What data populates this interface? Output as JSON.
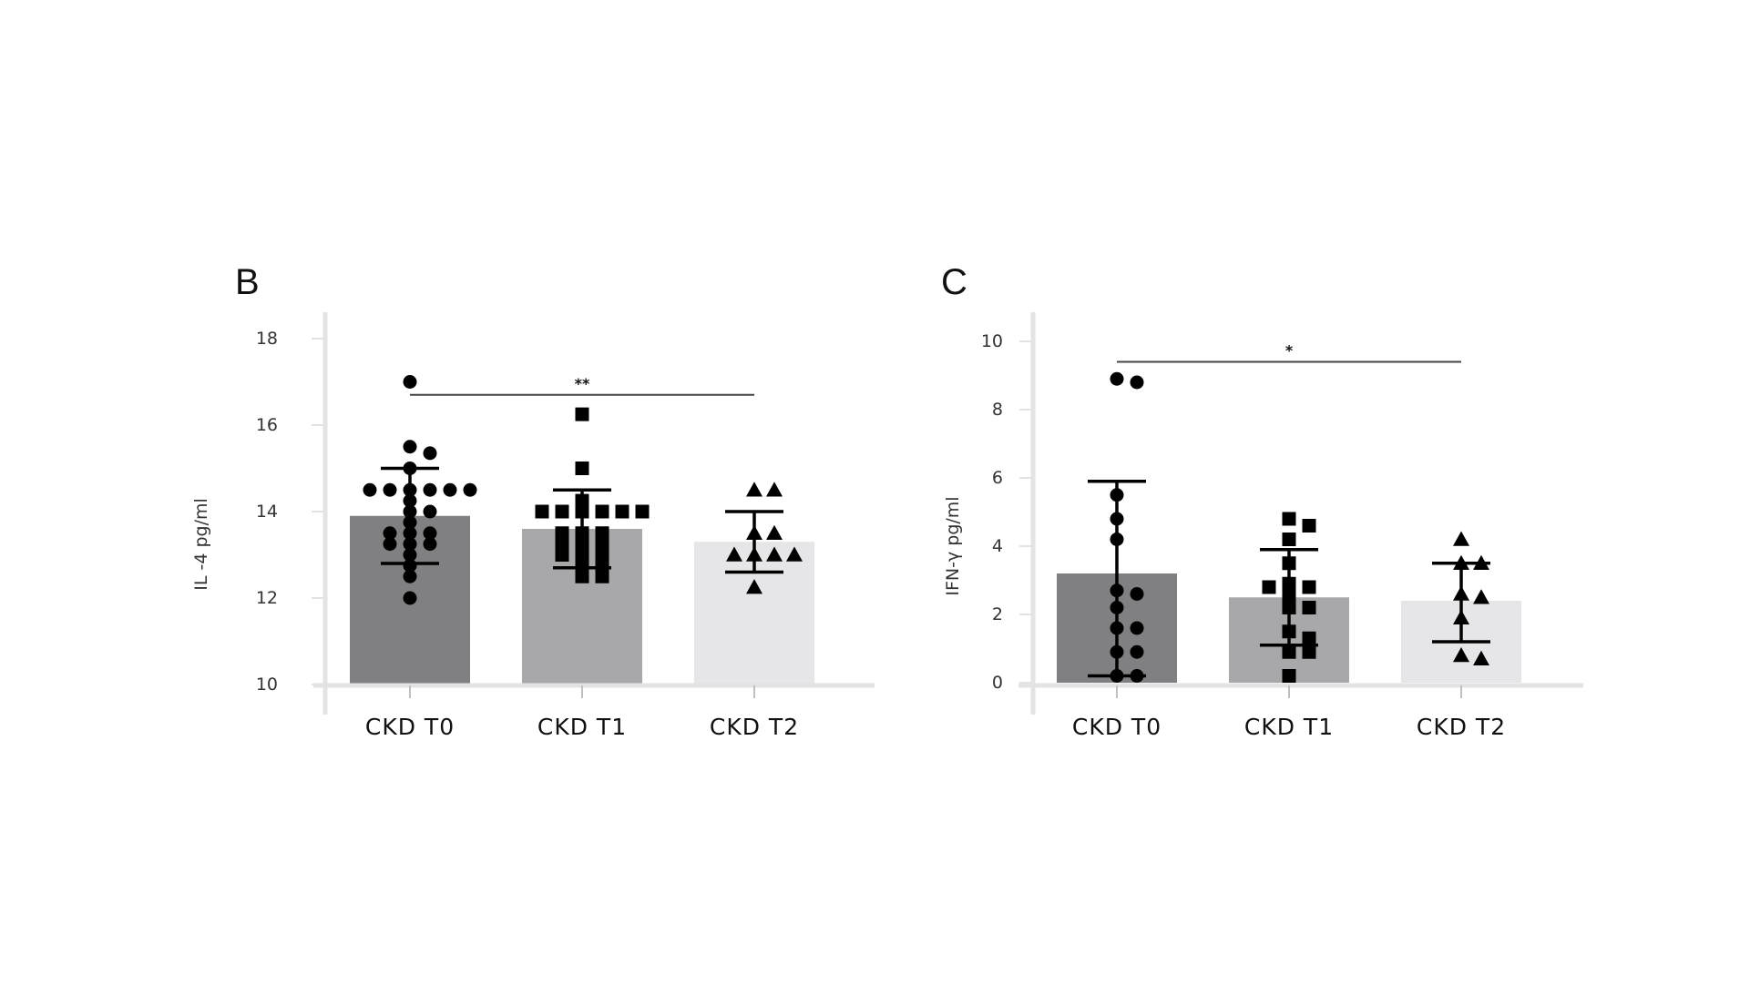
{
  "chart_data": [
    {
      "type": "bar",
      "panel_label": "B",
      "ylabel": "IL -4 pg/ml",
      "ylim": [
        10,
        18
      ],
      "yticks": [
        10,
        12,
        14,
        16,
        18
      ],
      "categories": [
        "CKD T0",
        "CKD T1",
        "CKD T2"
      ],
      "bar_colors": [
        "#808082",
        "#a8a8aa",
        "#e6e6e8"
      ],
      "marker_shapes": [
        "circle",
        "square",
        "triangle"
      ],
      "values": [
        13.9,
        13.6,
        13.3
      ],
      "error_bars": [
        [
          12.8,
          15.0
        ],
        [
          12.7,
          14.5
        ],
        [
          12.6,
          14.0
        ]
      ],
      "points": [
        [
          17.0,
          15.5,
          15.35,
          15.0,
          14.5,
          14.5,
          14.5,
          14.5,
          14.5,
          14.5,
          14.25,
          14.0,
          14.0,
          13.75,
          13.5,
          13.5,
          13.5,
          13.25,
          13.25,
          13.25,
          13.0,
          12.75,
          12.5,
          12.0
        ],
        [
          16.25,
          15.0,
          14.25,
          14.0,
          14.0,
          14.0,
          14.0,
          14.0,
          14.0,
          13.5,
          13.5,
          13.5,
          13.25,
          13.25,
          13.25,
          13.0,
          13.0,
          13.0,
          12.75,
          12.75,
          12.5,
          12.5
        ],
        [
          14.5,
          14.5,
          13.5,
          13.5,
          13.0,
          13.0,
          13.0,
          13.0,
          12.25
        ]
      ],
      "significance": {
        "from": "CKD T0",
        "to": "CKD T2",
        "label": "**",
        "y": 16.7
      }
    },
    {
      "type": "bar",
      "panel_label": "C",
      "ylabel": "IFN-γ pg/ml",
      "ylim": [
        0,
        10
      ],
      "yticks": [
        0,
        2,
        4,
        6,
        8,
        10
      ],
      "categories": [
        "CKD T0",
        "CKD T1",
        "CKD T2"
      ],
      "bar_colors": [
        "#808082",
        "#a8a8aa",
        "#e6e6e8"
      ],
      "marker_shapes": [
        "circle",
        "square",
        "triangle"
      ],
      "values": [
        3.2,
        2.5,
        2.4
      ],
      "error_bars": [
        [
          0.2,
          5.9
        ],
        [
          1.1,
          3.9
        ],
        [
          1.2,
          3.5
        ]
      ],
      "points": [
        [
          8.9,
          8.8,
          5.5,
          4.8,
          4.2,
          2.7,
          2.6,
          2.2,
          1.6,
          1.6,
          0.9,
          0.9,
          0.2,
          0.2
        ],
        [
          4.8,
          4.6,
          4.2,
          3.5,
          2.9,
          2.8,
          2.8,
          2.6,
          2.2,
          2.2,
          1.5,
          1.3,
          0.9,
          0.9,
          0.2
        ],
        [
          4.2,
          3.5,
          3.5,
          2.6,
          2.5,
          1.9,
          0.8,
          0.7
        ]
      ],
      "significance": {
        "from": "CKD T0",
        "to": "CKD T2",
        "label": "*",
        "y": 9.4
      }
    }
  ]
}
